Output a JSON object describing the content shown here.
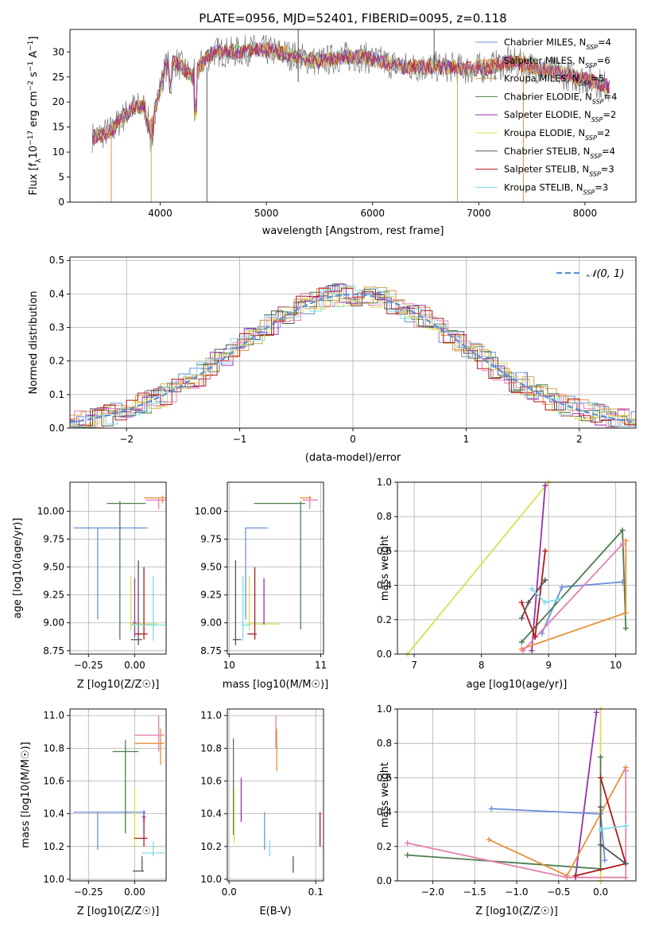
{
  "title": "PLATE=0956, MJD=52401, FIBERID=0095, z=0.118",
  "colors": {
    "chabrier_miles": "#6d8fd8",
    "salpeter_miles": "#e8913a",
    "kroupa_miles": "#c9a84c",
    "chabrier_elodie": "#4d7d4d",
    "salpeter_elodie": "#9a2fb0",
    "kroupa_elodie": "#d8e052",
    "chabrier_stelib": "#555555",
    "salpeter_stelib": "#b3171c",
    "kroupa_stelib": "#7fdde8",
    "normal_curve": "#5b8fd6",
    "pink": "#e57fb0"
  },
  "chart_data": [
    {
      "id": "spectrum",
      "type": "line",
      "xlabel": "wavelength [Angstrom, rest frame]",
      "ylabel": "Flux [f_λ 10^-17 erg cm^-2 s^-1 A^-1]",
      "xlim": [
        3150,
        8480
      ],
      "ylim": [
        0,
        34.5
      ],
      "xticks": [
        4000,
        5000,
        6000,
        7000,
        8000
      ],
      "yticks": [
        0,
        5,
        10,
        15,
        20,
        25,
        30
      ],
      "grid": false,
      "legend": "top-right",
      "series": [
        {
          "name": "Chabrier MILES, N_SSP=4",
          "key": "chabrier_miles"
        },
        {
          "name": "Salpeter MILES, N_SSP=6",
          "key": "salpeter_miles"
        },
        {
          "name": "Kroupa MILES, N_SSP=5",
          "key": "kroupa_miles"
        },
        {
          "name": "Chabrier ELODIE, N_SSP=4",
          "key": "chabrier_elodie"
        },
        {
          "name": "Salpeter ELODIE, N_SSP=2",
          "key": "salpeter_elodie"
        },
        {
          "name": "Kroupa ELODIE, N_SSP=2",
          "key": "kroupa_elodie"
        },
        {
          "name": "Chabrier STELIB, N_SSP=4",
          "key": "chabrier_stelib"
        },
        {
          "name": "Salpeter STELIB, N_SSP=3",
          "key": "salpeter_stelib"
        },
        {
          "name": "Kroupa STELIB, N_SSP=3",
          "key": "kroupa_stelib"
        }
      ],
      "envelope": [
        [
          3360,
          13
        ],
        [
          3450,
          13.5
        ],
        [
          3550,
          14.5
        ],
        [
          3650,
          17
        ],
        [
          3750,
          19
        ],
        [
          3850,
          19
        ],
        [
          3900,
          15
        ],
        [
          3970,
          20
        ],
        [
          4050,
          27
        ],
        [
          4150,
          28
        ],
        [
          4300,
          25
        ],
        [
          4400,
          28
        ],
        [
          4500,
          30
        ],
        [
          4700,
          30
        ],
        [
          4900,
          30.5
        ],
        [
          5100,
          30
        ],
        [
          5300,
          29
        ],
        [
          5500,
          28
        ],
        [
          5700,
          29
        ],
        [
          5900,
          29
        ],
        [
          6100,
          28
        ],
        [
          6300,
          27
        ],
        [
          6500,
          27
        ],
        [
          6700,
          27
        ],
        [
          6900,
          26.5
        ],
        [
          7100,
          27
        ],
        [
          7300,
          28
        ],
        [
          7500,
          27
        ],
        [
          7700,
          26
        ],
        [
          7900,
          25
        ],
        [
          8100,
          24
        ],
        [
          8230,
          23
        ]
      ],
      "glitches": [
        {
          "x": 3540,
          "y0": 0,
          "y1": 13,
          "key": "salpeter_miles"
        },
        {
          "x": 3915,
          "y0": 0,
          "y1": 17,
          "key": "kroupa_miles"
        },
        {
          "x": 4440,
          "y0": 0,
          "y1": 27,
          "key": "chabrier_stelib"
        },
        {
          "x": 5300,
          "y0": 24,
          "y1": 34.5,
          "key": "chabrier_stelib"
        },
        {
          "x": 6580,
          "y0": 27,
          "y1": 34.5,
          "key": "chabrier_stelib"
        },
        {
          "x": 6800,
          "y0": 0,
          "y1": 27,
          "key": "kroupa_miles"
        },
        {
          "x": 7420,
          "y0": 0,
          "y1": 30,
          "key": "salpeter_miles"
        }
      ]
    },
    {
      "id": "residuals",
      "type": "line",
      "xlabel": "(data-model)/error",
      "ylabel": "Normed distribution",
      "xlim": [
        -2.5,
        2.5
      ],
      "ylim": [
        0,
        0.51
      ],
      "xticks": [
        -2,
        -1,
        0,
        1,
        2
      ],
      "yticks": [
        0.0,
        0.1,
        0.2,
        0.3,
        0.4,
        0.5
      ],
      "grid": true,
      "legend": "top-right",
      "legend_label": "N(0,1)",
      "bin_width": 0.1
    },
    {
      "id": "age_vs_Z",
      "type": "scatter",
      "xlabel": "Z [log10(Z/Z☉)]",
      "ylabel": "age  [log10(age/yr)]",
      "xlim": [
        -0.35,
        0.17
      ],
      "ylim": [
        8.72,
        10.26
      ],
      "xticks": [
        -0.25,
        0.0
      ],
      "yticks": [
        8.75,
        9.0,
        9.25,
        9.5,
        9.75,
        10.0
      ],
      "grid": true,
      "points": [
        {
          "key": "chabrier_miles",
          "x": -0.2,
          "y": 9.85,
          "xlo": -0.33,
          "xhi": 0.07,
          "ylo": 9.03,
          "yhi": 9.85
        },
        {
          "key": "salpeter_miles",
          "x": 0.15,
          "y": 10.12,
          "xlo": 0.05,
          "xhi": 0.17,
          "ylo": 10.07,
          "yhi": 10.14
        },
        {
          "key": "pink",
          "x": 0.13,
          "y": 10.1,
          "xlo": 0.06,
          "xhi": 0.17,
          "ylo": 10.02,
          "yhi": 10.12
        },
        {
          "key": "chabrier_elodie",
          "x": -0.08,
          "y": 10.07,
          "xlo": -0.15,
          "xhi": 0.06,
          "ylo": 8.85,
          "yhi": 10.09
        },
        {
          "key": "salpeter_elodie",
          "x": 0.0,
          "y": 9.0,
          "xlo": -0.01,
          "xhi": 0.01,
          "ylo": 8.87,
          "yhi": 9.4
        },
        {
          "key": "kroupa_elodie",
          "x": -0.02,
          "y": 8.99,
          "xlo": -0.03,
          "xhi": 0.12,
          "ylo": 8.93,
          "yhi": 9.42
        },
        {
          "key": "chabrier_stelib",
          "x": 0.02,
          "y": 8.85,
          "xlo": -0.02,
          "xhi": 0.04,
          "ylo": 8.8,
          "yhi": 9.56
        },
        {
          "key": "salpeter_stelib",
          "x": 0.05,
          "y": 8.9,
          "xlo": 0.0,
          "xhi": 0.07,
          "ylo": 8.85,
          "yhi": 9.5
        },
        {
          "key": "kroupa_stelib",
          "x": 0.1,
          "y": 8.98,
          "xlo": -0.02,
          "xhi": 0.17,
          "ylo": 8.84,
          "yhi": 9.42
        }
      ]
    },
    {
      "id": "age_vs_mass",
      "type": "scatter",
      "xlabel": "mass [log10(M/M☉)]",
      "ylabel": "",
      "xlim": [
        9.98,
        11.03
      ],
      "ylim": [
        8.72,
        10.26
      ],
      "xticks": [
        10,
        11
      ],
      "yticks": [
        8.75,
        9.0,
        9.25,
        9.5,
        9.75,
        10.0
      ],
      "grid": true,
      "points": [
        {
          "key": "chabrier_miles",
          "x": 10.18,
          "y": 9.85,
          "xlo": 10.17,
          "xhi": 10.42,
          "ylo": 9.03,
          "yhi": 9.85
        },
        {
          "key": "salpeter_miles",
          "x": 10.88,
          "y": 10.12,
          "xlo": 10.77,
          "xhi": 10.9,
          "ylo": 10.1,
          "yhi": 10.14
        },
        {
          "key": "pink",
          "x": 10.88,
          "y": 10.1,
          "xlo": 10.8,
          "xhi": 10.97,
          "ylo": 10.02,
          "yhi": 10.12
        },
        {
          "key": "chabrier_elodie",
          "x": 10.78,
          "y": 10.07,
          "xlo": 10.27,
          "xhi": 10.83,
          "ylo": 8.94,
          "yhi": 10.09
        },
        {
          "key": "salpeter_elodie",
          "x": 10.38,
          "y": 9.0,
          "xlo": 10.37,
          "xhi": 10.39,
          "ylo": 8.98,
          "yhi": 9.4
        },
        {
          "key": "kroupa_elodie",
          "x": 10.22,
          "y": 8.99,
          "xlo": 10.2,
          "xhi": 10.55,
          "ylo": 8.93,
          "yhi": 9.42
        },
        {
          "key": "chabrier_stelib",
          "x": 10.07,
          "y": 8.85,
          "xlo": 10.04,
          "xhi": 10.13,
          "ylo": 8.8,
          "yhi": 9.56
        },
        {
          "key": "salpeter_stelib",
          "x": 10.28,
          "y": 8.9,
          "xlo": 10.2,
          "xhi": 10.3,
          "ylo": 8.85,
          "yhi": 9.5
        },
        {
          "key": "kroupa_stelib",
          "x": 10.15,
          "y": 8.98,
          "xlo": 10.13,
          "xhi": 10.23,
          "ylo": 8.84,
          "yhi": 9.42
        }
      ]
    },
    {
      "id": "weight_vs_age",
      "type": "line",
      "xlabel": "age  [log10(age/yr)]",
      "ylabel": "mass weight",
      "xlim": [
        6.75,
        10.3
      ],
      "ylim": [
        0,
        1
      ],
      "xticks": [
        7,
        8,
        9,
        10
      ],
      "yticks": [
        0.0,
        0.2,
        0.4,
        0.6,
        0.8,
        1.0
      ],
      "grid": true,
      "series": [
        {
          "key": "kroupa_elodie",
          "points": [
            [
              6.9,
              0
            ],
            [
              9.0,
              1.0
            ]
          ]
        },
        {
          "key": "salpeter_elodie",
          "points": [
            [
              8.75,
              0.02
            ],
            [
              8.95,
              0.98
            ]
          ]
        },
        {
          "key": "chabrier_miles",
          "points": [
            [
              8.9,
              0.12
            ],
            [
              9.2,
              0.39
            ],
            [
              10.1,
              0.42
            ]
          ]
        },
        {
          "key": "chabrier_elodie",
          "points": [
            [
              8.6,
              0.07
            ],
            [
              10.1,
              0.72
            ],
            [
              10.15,
              0.15
            ]
          ]
        },
        {
          "key": "salpeter_miles",
          "points": [
            [
              8.6,
              0.03
            ],
            [
              10.15,
              0.24
            ],
            [
              10.15,
              0.66
            ]
          ]
        },
        {
          "key": "pink",
          "points": [
            [
              8.62,
              0.02
            ],
            [
              10.1,
              0.64
            ]
          ]
        },
        {
          "key": "salpeter_stelib",
          "points": [
            [
              8.6,
              0.3
            ],
            [
              8.8,
              0.1
            ],
            [
              8.95,
              0.6
            ]
          ]
        },
        {
          "key": "chabrier_stelib",
          "points": [
            [
              8.6,
              0.21
            ],
            [
              8.7,
              0.3
            ],
            [
              8.95,
              0.43
            ]
          ]
        },
        {
          "key": "kroupa_stelib",
          "points": [
            [
              8.75,
              0.38
            ],
            [
              8.95,
              0.3
            ],
            [
              9.15,
              0.32
            ]
          ]
        }
      ]
    },
    {
      "id": "mass_vs_Z",
      "type": "scatter",
      "xlabel": "Z [log10(Z/Z☉)]",
      "ylabel": "mass [log10(M/M☉)]",
      "xlim": [
        -0.35,
        0.17
      ],
      "ylim": [
        9.99,
        11.04
      ],
      "xticks": [
        -0.25,
        0.0
      ],
      "yticks": [
        10.0,
        10.2,
        10.4,
        10.6,
        10.8,
        11.0
      ],
      "grid": true,
      "points": [
        {
          "key": "chabrier_miles",
          "x": -0.2,
          "y": 10.41,
          "xlo": -0.33,
          "xhi": 0.06,
          "ylo": 10.18,
          "yhi": 10.41
        },
        {
          "key": "pink",
          "x": 0.13,
          "y": 10.88,
          "xlo": 0.0,
          "xhi": 0.16,
          "ylo": 10.78,
          "yhi": 11.0
        },
        {
          "key": "salpeter_miles",
          "x": 0.14,
          "y": 10.83,
          "xlo": 0.0,
          "xhi": 0.16,
          "ylo": 10.7,
          "yhi": 10.92
        },
        {
          "key": "chabrier_elodie",
          "x": -0.05,
          "y": 10.78,
          "xlo": -0.12,
          "xhi": 0.02,
          "ylo": 10.28,
          "yhi": 10.85
        },
        {
          "key": "salpeter_elodie",
          "x": 0.05,
          "y": 10.38,
          "xlo": 0.04,
          "xhi": 0.06,
          "ylo": 10.35,
          "yhi": 10.42
        },
        {
          "key": "kroupa_elodie",
          "x": 0.0,
          "y": 10.25,
          "xlo": -0.01,
          "xhi": 0.01,
          "ylo": 10.2,
          "yhi": 10.55
        },
        {
          "key": "chabrier_stelib",
          "x": 0.04,
          "y": 10.05,
          "xlo": -0.01,
          "xhi": 0.05,
          "ylo": 10.05,
          "yhi": 10.14
        },
        {
          "key": "salpeter_stelib",
          "x": 0.05,
          "y": 10.25,
          "xlo": 0.0,
          "xhi": 0.07,
          "ylo": 10.2,
          "yhi": 10.38
        },
        {
          "key": "kroupa_stelib",
          "x": 0.1,
          "y": 10.16,
          "xlo": 0.04,
          "xhi": 0.16,
          "ylo": 10.14,
          "yhi": 10.23
        }
      ]
    },
    {
      "id": "mass_vs_ebv",
      "type": "scatter",
      "xlabel": "E(B-V)",
      "ylabel": "",
      "xlim": [
        -0.002,
        0.109
      ],
      "ylim": [
        9.99,
        11.04
      ],
      "xticks": [
        0.0,
        0.1
      ],
      "yticks": [
        10.0,
        10.2,
        10.4,
        10.6,
        10.8,
        11.0
      ],
      "grid": true,
      "points": [
        {
          "key": "chabrier_elodie",
          "x": 0.005,
          "y": 10.86,
          "ylo": 10.27,
          "yhi": 10.86
        },
        {
          "key": "kroupa_elodie",
          "x": 0.006,
          "y": 10.5,
          "ylo": 10.22,
          "yhi": 10.55
        },
        {
          "key": "salpeter_elodie",
          "x": 0.014,
          "y": 10.62,
          "ylo": 10.35,
          "yhi": 10.62
        },
        {
          "key": "chabrier_miles",
          "x": 0.041,
          "y": 10.41,
          "ylo": 10.18,
          "yhi": 10.41
        },
        {
          "key": "kroupa_stelib",
          "x": 0.047,
          "y": 10.24,
          "ylo": 10.14,
          "yhi": 10.24
        },
        {
          "key": "pink",
          "x": 0.054,
          "y": 11.0,
          "ylo": 10.8,
          "yhi": 11.0
        },
        {
          "key": "salpeter_miles",
          "x": 0.055,
          "y": 10.92,
          "ylo": 10.66,
          "yhi": 10.92
        },
        {
          "key": "chabrier_stelib",
          "x": 0.074,
          "y": 10.14,
          "ylo": 10.04,
          "yhi": 10.14
        },
        {
          "key": "salpeter_stelib",
          "x": 0.105,
          "y": 10.41,
          "ylo": 10.2,
          "yhi": 10.41
        }
      ]
    },
    {
      "id": "weight_vs_Z",
      "type": "line",
      "xlabel": "Z [log10(Z/Z☉)]",
      "ylabel": "mass weight",
      "xlim": [
        -2.42,
        0.42
      ],
      "ylim": [
        0,
        1
      ],
      "xticks": [
        -2.0,
        -1.5,
        -1.0,
        -0.5,
        0.0
      ],
      "yticks": [
        0.0,
        0.2,
        0.4,
        0.6,
        0.8,
        1.0
      ],
      "grid": true,
      "series": [
        {
          "key": "kroupa_elodie",
          "points": [
            [
              0.0,
              1.0
            ],
            [
              0.0,
              0.0
            ]
          ]
        },
        {
          "key": "salpeter_elodie",
          "points": [
            [
              -0.3,
              0.02
            ],
            [
              -0.05,
              0.98
            ]
          ]
        },
        {
          "key": "chabrier_miles",
          "points": [
            [
              -1.3,
              0.42
            ],
            [
              0.0,
              0.39
            ],
            [
              0.05,
              0.12
            ]
          ]
        },
        {
          "key": "chabrier_elodie",
          "points": [
            [
              -2.3,
              0.15
            ],
            [
              0.0,
              0.07
            ],
            [
              0.0,
              0.72
            ]
          ]
        },
        {
          "key": "salpeter_miles",
          "points": [
            [
              -1.33,
              0.24
            ],
            [
              -0.4,
              0.03
            ],
            [
              0.3,
              0.66
            ]
          ]
        },
        {
          "key": "pink",
          "points": [
            [
              -2.3,
              0.22
            ],
            [
              -0.4,
              0.02
            ],
            [
              0.3,
              0.02
            ],
            [
              0.3,
              0.64
            ]
          ]
        },
        {
          "key": "salpeter_stelib",
          "points": [
            [
              0.0,
              0.6
            ],
            [
              0.3,
              0.1
            ],
            [
              -0.3,
              0.03
            ]
          ]
        },
        {
          "key": "chabrier_stelib",
          "points": [
            [
              0.0,
              0.43
            ],
            [
              0.0,
              0.21
            ],
            [
              0.3,
              0.1
            ]
          ]
        },
        {
          "key": "kroupa_stelib",
          "points": [
            [
              0.0,
              0.3
            ],
            [
              0.3,
              0.32
            ]
          ]
        }
      ]
    }
  ]
}
